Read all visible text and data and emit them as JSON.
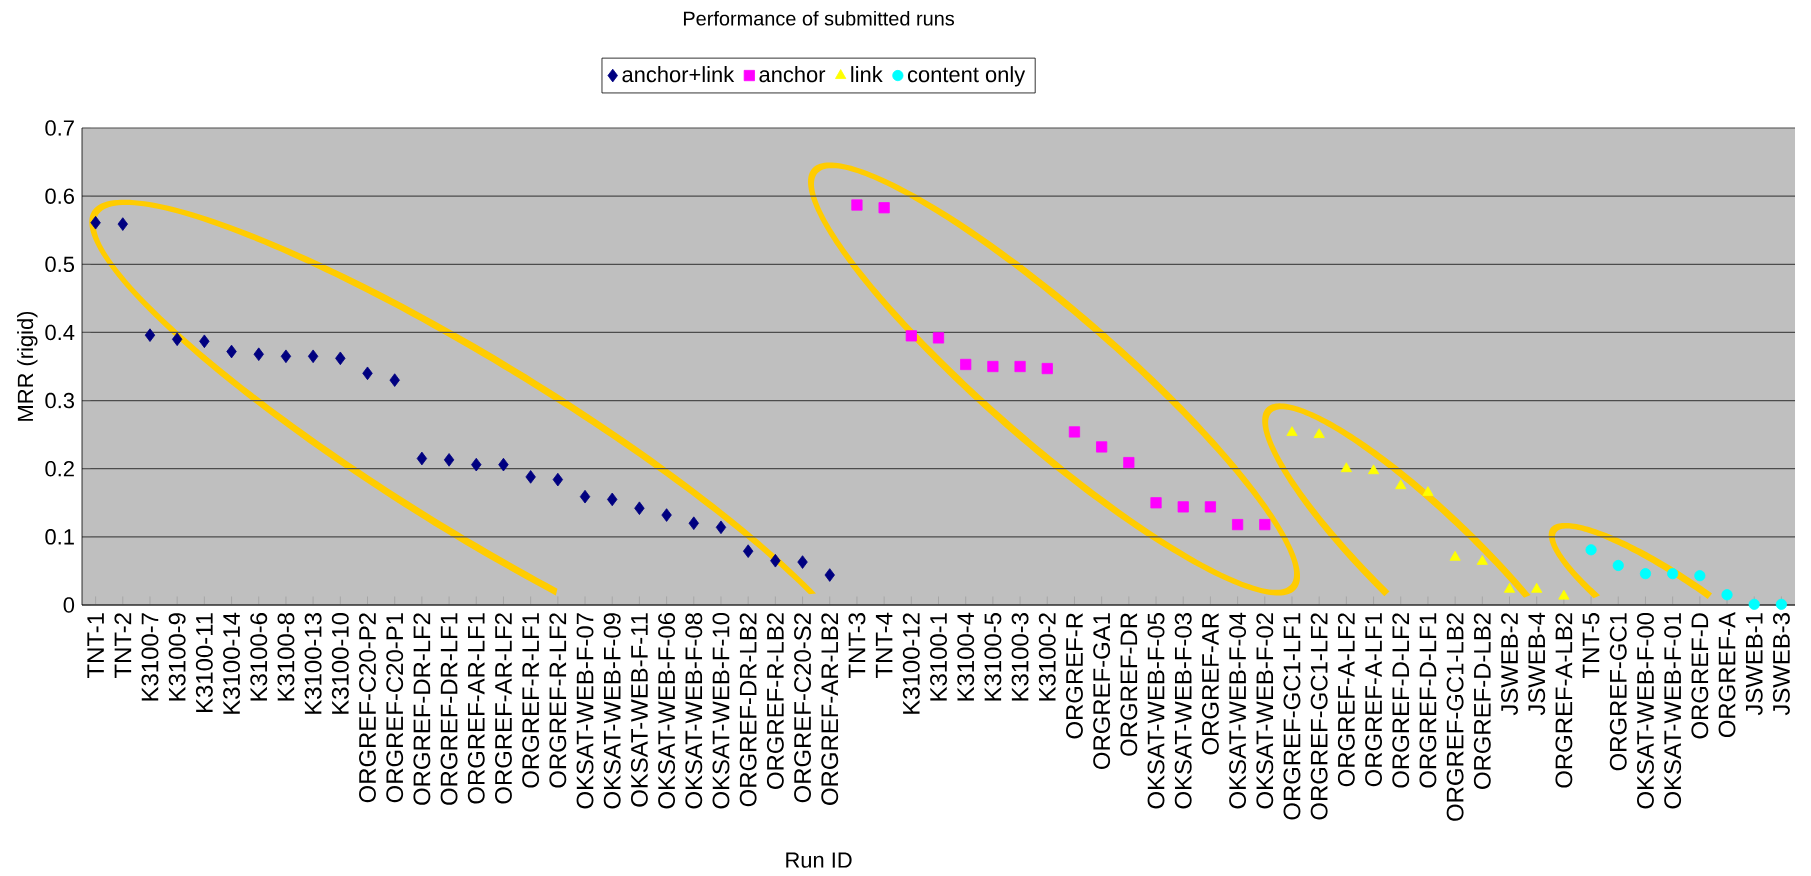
{
  "chart_data": {
    "type": "scatter",
    "title": "Performance of submitted runs",
    "xlabel": "Run ID",
    "ylabel": "MRR (rigid)",
    "categories": [
      "TNT-1",
      "TNT-2",
      "K3100-7",
      "K3100-9",
      "K3100-11",
      "K3100-14",
      "K3100-6",
      "K3100-8",
      "K3100-13",
      "K3100-10",
      "ORGREF-C20-P2",
      "ORGREF-C20-P1",
      "ORGREF-DR-LF2",
      "ORGREF-DR-LF1",
      "ORGREF-AR-LF1",
      "ORGREF-AR-LF2",
      "ORGREF-R-LF1",
      "ORGREF-R-LF2",
      "OKSAT-WEB-F-07",
      "OKSAT-WEB-F-09",
      "OKSAT-WEB-F-11",
      "OKSAT-WEB-F-06",
      "OKSAT-WEB-F-08",
      "OKSAT-WEB-F-10",
      "ORGREF-DR-LB2",
      "ORGREF-R-LB2",
      "ORGREF-C20-S2",
      "ORGREF-AR-LB2",
      "TNT-3",
      "TNT-4",
      "K3100-12",
      "K3100-1",
      "K3100-4",
      "K3100-5",
      "K3100-3",
      "K3100-2",
      "ORGREF-R",
      "ORGREF-GA1",
      "ORGREF-DR",
      "OKSAT-WEB-F-05",
      "OKSAT-WEB-F-03",
      "ORGREF-AR",
      "OKSAT-WEB-F-04",
      "OKSAT-WEB-F-02",
      "ORGREF-GC1-LF1",
      "ORGREF-GC1-LF2",
      "ORGREF-A-LF2",
      "ORGREF-A-LF1",
      "ORGREF-D-LF2",
      "ORGREF-D-LF1",
      "ORGREF-GC1-LB2",
      "ORGREF-D-LB2",
      "JSWEB-2",
      "JSWEB-4",
      "ORGREF-A-LB2",
      "TNT-5",
      "ORGREF-GC1",
      "OKSAT-WEB-F-00",
      "OKSAT-WEB-F-01",
      "ORGREF-D",
      "ORGREF-A",
      "JSWEB-1",
      "JSWEB-3"
    ],
    "series": [
      {
        "name": "anchor+link",
        "color": "#000080",
        "marker": "diamond",
        "values": [
          0.561,
          0.559,
          0.396,
          0.39,
          0.387,
          0.372,
          0.368,
          0.365,
          0.365,
          0.362,
          0.34,
          0.33,
          0.215,
          0.213,
          0.206,
          0.206,
          0.188,
          0.184,
          0.159,
          0.155,
          0.142,
          0.132,
          0.12,
          0.114,
          0.079,
          0.065,
          0.063,
          0.044,
          null,
          null,
          null,
          null,
          null,
          null,
          null,
          null,
          null,
          null,
          null,
          null,
          null,
          null,
          null,
          null,
          null,
          null,
          null,
          null,
          null,
          null,
          null,
          null,
          null,
          null,
          null,
          null,
          null,
          null,
          null,
          null,
          null,
          null,
          null
        ]
      },
      {
        "name": "anchor",
        "color": "#ff00ff",
        "marker": "square",
        "values": [
          null,
          null,
          null,
          null,
          null,
          null,
          null,
          null,
          null,
          null,
          null,
          null,
          null,
          null,
          null,
          null,
          null,
          null,
          null,
          null,
          null,
          null,
          null,
          null,
          null,
          null,
          null,
          null,
          0.587,
          0.583,
          0.395,
          0.392,
          0.353,
          0.35,
          0.35,
          0.347,
          0.254,
          0.232,
          0.209,
          0.15,
          0.144,
          0.144,
          0.118,
          0.118,
          null,
          null,
          null,
          null,
          null,
          null,
          null,
          null,
          null,
          null,
          null,
          null,
          null,
          null,
          null,
          null,
          null,
          null,
          null
        ]
      },
      {
        "name": "link",
        "color": "#ffff00",
        "marker": "triangle",
        "values": [
          null,
          null,
          null,
          null,
          null,
          null,
          null,
          null,
          null,
          null,
          null,
          null,
          null,
          null,
          null,
          null,
          null,
          null,
          null,
          null,
          null,
          null,
          null,
          null,
          null,
          null,
          null,
          null,
          null,
          null,
          null,
          null,
          null,
          null,
          null,
          null,
          null,
          null,
          null,
          null,
          null,
          null,
          null,
          null,
          0.253,
          0.25,
          0.2,
          0.197,
          0.175,
          0.165,
          0.07,
          0.064,
          0.023,
          0.023,
          0.013,
          null,
          null,
          null,
          null,
          null,
          null,
          null,
          null
        ]
      },
      {
        "name": "content only",
        "color": "#00ffff",
        "marker": "circle",
        "values": [
          null,
          null,
          null,
          null,
          null,
          null,
          null,
          null,
          null,
          null,
          null,
          null,
          null,
          null,
          null,
          null,
          null,
          null,
          null,
          null,
          null,
          null,
          null,
          null,
          null,
          null,
          null,
          null,
          null,
          null,
          null,
          null,
          null,
          null,
          null,
          null,
          null,
          null,
          null,
          null,
          null,
          null,
          null,
          null,
          null,
          null,
          null,
          null,
          null,
          null,
          null,
          null,
          null,
          null,
          null,
          0.081,
          0.058,
          0.046,
          0.046,
          0.043,
          0.015,
          0.001,
          0.001
        ]
      }
    ],
    "ylim": [
      0,
      0.7
    ],
    "yticks": [
      0,
      0.1,
      0.2,
      0.3,
      0.4,
      0.5,
      0.6,
      0.7
    ],
    "grid": "y",
    "legend": "top"
  }
}
